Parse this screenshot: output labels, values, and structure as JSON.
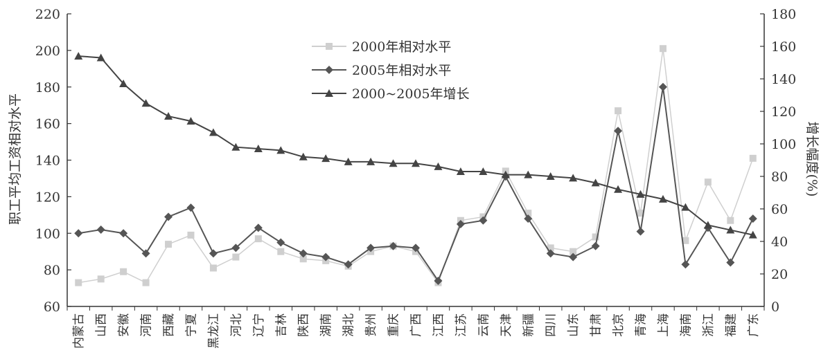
{
  "chart_data": {
    "type": "line",
    "categories": [
      "内蒙古",
      "山西",
      "安徽",
      "河南",
      "西藏",
      "宁夏",
      "黑龙江",
      "河北",
      "辽宁",
      "吉林",
      "陕西",
      "湖南",
      "湖北",
      "贵州",
      "重庆",
      "广西",
      "江西",
      "江苏",
      "云南",
      "天津",
      "新疆",
      "四川",
      "山东",
      "甘肃",
      "北京",
      "青海",
      "上海",
      "海南",
      "浙江",
      "福建",
      "广东"
    ],
    "ylabel_left": "职工平均工资相对水平",
    "ylabel_right": "增长幅度(%)",
    "ylim_left": [
      60,
      220
    ],
    "yticks_left": [
      "60",
      "80",
      "100",
      "120",
      "140",
      "160",
      "180",
      "200",
      "220"
    ],
    "ylim_right": [
      0,
      180
    ],
    "yticks_right": [
      "0",
      "20",
      "40",
      "60",
      "80",
      "100",
      "120",
      "140",
      "160",
      "180"
    ],
    "legend_position": "top-center",
    "series": [
      {
        "name": "2000年相对水平",
        "axis": "left",
        "marker": "square",
        "color": "#cfcfcf",
        "values": [
          73,
          75,
          79,
          73,
          94,
          99,
          81,
          87,
          97,
          90,
          86,
          85,
          82,
          90,
          93,
          90,
          73,
          107,
          109,
          134,
          111,
          92,
          90,
          98,
          167,
          111,
          201,
          96,
          128,
          107,
          141
        ]
      },
      {
        "name": "2005年相对水平",
        "axis": "left",
        "marker": "diamond",
        "color": "#555555",
        "values": [
          100,
          102,
          100,
          89,
          109,
          114,
          89,
          92,
          103,
          95,
          89,
          87,
          83,
          92,
          93,
          92,
          74,
          105,
          107,
          131,
          108,
          89,
          87,
          93,
          156,
          101,
          180,
          83,
          103,
          84,
          108
        ]
      },
      {
        "name": "2000~2005年增长",
        "axis": "right",
        "marker": "triangle",
        "color": "#444444",
        "values": [
          154,
          153,
          137,
          125,
          117,
          114,
          107,
          98,
          97,
          96,
          92,
          91,
          89,
          89,
          88,
          88,
          86,
          83,
          83,
          81,
          81,
          80,
          79,
          76,
          72,
          69,
          66,
          61,
          50,
          47,
          44
        ]
      }
    ]
  }
}
